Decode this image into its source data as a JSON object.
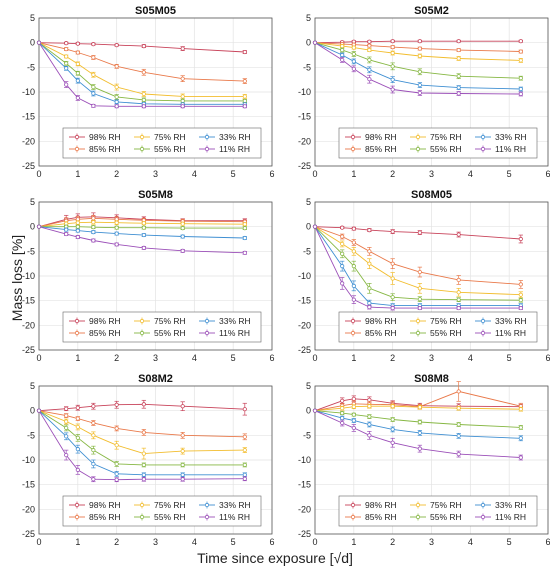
{
  "figure": {
    "ylabel": "Mass loss [%]",
    "xlabel": "Time since exposure [√d]"
  },
  "colors": {
    "98% RH": "#c8435a",
    "85% RH": "#e9794a",
    "75% RH": "#f2bd2e",
    "55% RH": "#86b743",
    "33% RH": "#3f8fd2",
    "11% RH": "#9b4fb8"
  },
  "chart_data": [
    {
      "type": "line",
      "title": "S05M05",
      "xlim": [
        0,
        6
      ],
      "ylim": [
        -25,
        5
      ],
      "grid": true,
      "legend": "bottom",
      "x": [
        0,
        0.7,
        1,
        1.4,
        2,
        2.7,
        3.7,
        5.3
      ],
      "series": [
        {
          "name": "98% RH",
          "values": [
            0,
            -0.1,
            -0.2,
            -0.3,
            -0.5,
            -0.7,
            -1.2,
            -1.9
          ],
          "errors": [
            0,
            0.2,
            0.2,
            0.2,
            0.2,
            0.3,
            0.4,
            0.3
          ]
        },
        {
          "name": "85% RH",
          "values": [
            0,
            -1.3,
            -2.0,
            -3.0,
            -4.8,
            -6.0,
            -7.3,
            -7.8
          ],
          "errors": [
            0,
            0.3,
            0.3,
            0.4,
            0.4,
            0.6,
            0.6,
            0.5
          ]
        },
        {
          "name": "75% RH",
          "values": [
            0,
            -2.8,
            -4.3,
            -6.5,
            -9.0,
            -10.4,
            -10.9,
            -10.9
          ],
          "errors": [
            0,
            0.3,
            0.4,
            0.5,
            0.6,
            0.5,
            0.5,
            0.4
          ]
        },
        {
          "name": "55% RH",
          "values": [
            0,
            -4.2,
            -6.2,
            -9.0,
            -11.0,
            -11.6,
            -11.8,
            -11.8
          ],
          "errors": [
            0,
            0.4,
            0.4,
            0.5,
            0.5,
            0.4,
            0.4,
            0.3
          ]
        },
        {
          "name": "33% RH",
          "values": [
            0,
            -5.2,
            -7.7,
            -10.3,
            -12.0,
            -12.4,
            -12.5,
            -12.5
          ],
          "errors": [
            0,
            0.4,
            0.5,
            0.5,
            0.4,
            0.3,
            0.3,
            0.3
          ]
        },
        {
          "name": "11% RH",
          "values": [
            0,
            -8.5,
            -11.2,
            -12.8,
            -12.9,
            -12.9,
            -12.9,
            -12.9
          ],
          "errors": [
            0,
            0.6,
            0.5,
            0.3,
            0.3,
            0.3,
            0.3,
            0.3
          ]
        }
      ]
    },
    {
      "type": "line",
      "title": "S05M2",
      "xlim": [
        0,
        6
      ],
      "ylim": [
        -25,
        5
      ],
      "grid": true,
      "legend": "bottom",
      "x": [
        0,
        0.7,
        1,
        1.4,
        2,
        2.7,
        3.7,
        5.3
      ],
      "series": [
        {
          "name": "98% RH",
          "values": [
            0,
            0.1,
            0.2,
            0.2,
            0.3,
            0.3,
            0.3,
            0.3
          ],
          "errors": [
            0,
            0.2,
            0.2,
            0.2,
            0.2,
            0.2,
            0.2,
            0.2
          ]
        },
        {
          "name": "85% RH",
          "values": [
            0,
            -0.3,
            -0.4,
            -0.6,
            -0.9,
            -1.2,
            -1.5,
            -1.8
          ],
          "errors": [
            0,
            0.2,
            0.2,
            0.3,
            0.3,
            0.3,
            0.3,
            0.3
          ]
        },
        {
          "name": "75% RH",
          "values": [
            0,
            -0.7,
            -1.0,
            -1.5,
            -2.1,
            -2.7,
            -3.2,
            -3.6
          ],
          "errors": [
            0,
            0.3,
            0.3,
            0.3,
            0.4,
            0.4,
            0.4,
            0.4
          ]
        },
        {
          "name": "55% RH",
          "values": [
            0,
            -1.5,
            -2.3,
            -3.5,
            -4.8,
            -5.9,
            -6.8,
            -7.2
          ],
          "errors": [
            0,
            0.4,
            0.5,
            0.6,
            0.7,
            0.6,
            0.5,
            0.4
          ]
        },
        {
          "name": "33% RH",
          "values": [
            0,
            -2.5,
            -3.8,
            -5.5,
            -7.5,
            -8.6,
            -9.1,
            -9.4
          ],
          "errors": [
            0,
            0.4,
            0.5,
            0.6,
            0.6,
            0.5,
            0.4,
            0.4
          ]
        },
        {
          "name": "11% RH",
          "values": [
            0,
            -3.5,
            -5.3,
            -7.4,
            -9.5,
            -10.2,
            -10.3,
            -10.4
          ],
          "errors": [
            0,
            0.5,
            0.6,
            0.8,
            0.7,
            0.5,
            0.4,
            0.4
          ]
        }
      ]
    },
    {
      "type": "line",
      "title": "S05M8",
      "xlim": [
        0,
        6
      ],
      "ylim": [
        -25,
        5
      ],
      "grid": true,
      "legend": "bottom",
      "x": [
        0,
        0.7,
        1,
        1.4,
        2,
        2.7,
        3.7,
        5.3
      ],
      "series": [
        {
          "name": "98% RH",
          "values": [
            0,
            1.5,
            1.9,
            2.0,
            1.8,
            1.5,
            1.2,
            1.2
          ],
          "errors": [
            0,
            0.8,
            0.7,
            0.8,
            0.6,
            0.5,
            0.4,
            0.4
          ]
        },
        {
          "name": "85% RH",
          "values": [
            0,
            1.2,
            1.5,
            1.7,
            1.5,
            1.3,
            1.1,
            1.0
          ],
          "errors": [
            0,
            0.6,
            0.6,
            0.6,
            0.5,
            0.4,
            0.4,
            0.3
          ]
        },
        {
          "name": "75% RH",
          "values": [
            0,
            0.6,
            0.8,
            0.9,
            0.8,
            0.7,
            0.6,
            0.5
          ],
          "errors": [
            0,
            0.4,
            0.4,
            0.4,
            0.4,
            0.3,
            0.3,
            0.3
          ]
        },
        {
          "name": "55% RH",
          "values": [
            0,
            0.0,
            0.0,
            -0.1,
            -0.2,
            -0.2,
            -0.3,
            -0.3
          ],
          "errors": [
            0,
            0.3,
            0.3,
            0.3,
            0.3,
            0.3,
            0.3,
            0.3
          ]
        },
        {
          "name": "33% RH",
          "values": [
            0,
            -0.6,
            -0.8,
            -1.1,
            -1.4,
            -1.7,
            -2.0,
            -2.3
          ],
          "errors": [
            0,
            0.3,
            0.3,
            0.3,
            0.3,
            0.3,
            0.3,
            0.3
          ]
        },
        {
          "name": "11% RH",
          "values": [
            0,
            -1.5,
            -2.1,
            -2.8,
            -3.6,
            -4.3,
            -4.9,
            -5.3
          ],
          "errors": [
            0,
            0.3,
            0.3,
            0.3,
            0.3,
            0.3,
            0.3,
            0.3
          ]
        }
      ]
    },
    {
      "type": "line",
      "title": "S08M05",
      "xlim": [
        0,
        6
      ],
      "ylim": [
        -25,
        5
      ],
      "grid": true,
      "legend": "bottom",
      "x": [
        0,
        0.7,
        1,
        1.4,
        2,
        2.7,
        3.7,
        5.3
      ],
      "series": [
        {
          "name": "98% RH",
          "values": [
            0,
            -0.2,
            -0.4,
            -0.7,
            -1.0,
            -1.2,
            -1.6,
            -2.5
          ],
          "errors": [
            0,
            0.2,
            0.3,
            0.3,
            0.4,
            0.4,
            0.5,
            0.8
          ]
        },
        {
          "name": "85% RH",
          "values": [
            0,
            -2.0,
            -3.2,
            -5.0,
            -7.5,
            -9.2,
            -10.8,
            -11.7
          ],
          "errors": [
            0,
            0.5,
            0.6,
            0.8,
            1.0,
            1.0,
            0.9,
            0.8
          ]
        },
        {
          "name": "75% RH",
          "values": [
            0,
            -3.5,
            -5.0,
            -7.5,
            -10.5,
            -12.5,
            -13.3,
            -13.8
          ],
          "errors": [
            0,
            0.6,
            0.8,
            1.0,
            1.2,
            1.0,
            0.8,
            0.6
          ]
        },
        {
          "name": "55% RH",
          "values": [
            0,
            -5.5,
            -8.0,
            -12.5,
            -14.3,
            -14.7,
            -14.8,
            -14.9
          ],
          "errors": [
            0,
            0.8,
            1.0,
            1.0,
            0.7,
            0.5,
            0.4,
            0.4
          ]
        },
        {
          "name": "33% RH",
          "values": [
            0,
            -8.0,
            -12.0,
            -15.5,
            -16.0,
            -16.0,
            -16.0,
            -16.0
          ],
          "errors": [
            0,
            1.0,
            1.0,
            0.6,
            0.4,
            0.4,
            0.4,
            0.4
          ]
        },
        {
          "name": "11% RH",
          "values": [
            0,
            -11.5,
            -14.8,
            -16.3,
            -16.5,
            -16.5,
            -16.5,
            -16.5
          ],
          "errors": [
            0,
            1.2,
            0.8,
            0.4,
            0.4,
            0.3,
            0.3,
            0.3
          ]
        }
      ]
    },
    {
      "type": "line",
      "title": "S08M2",
      "xlim": [
        0,
        6
      ],
      "ylim": [
        -25,
        5
      ],
      "grid": true,
      "legend": "bottom",
      "x": [
        0,
        0.7,
        1,
        1.4,
        2,
        2.7,
        3.7,
        5.3
      ],
      "series": [
        {
          "name": "98% RH",
          "values": [
            0,
            0.4,
            0.6,
            0.9,
            1.2,
            1.3,
            0.9,
            0.3
          ],
          "errors": [
            0,
            0.4,
            0.5,
            0.6,
            0.7,
            0.8,
            0.9,
            1.2
          ]
        },
        {
          "name": "85% RH",
          "values": [
            0,
            -1.0,
            -1.6,
            -2.5,
            -3.6,
            -4.4,
            -5.0,
            -5.3
          ],
          "errors": [
            0,
            0.4,
            0.4,
            0.5,
            0.5,
            0.6,
            0.6,
            0.6
          ]
        },
        {
          "name": "75% RH",
          "values": [
            0,
            -2.2,
            -3.3,
            -5.0,
            -7.0,
            -8.7,
            -8.2,
            -8.0
          ],
          "errors": [
            0,
            0.5,
            0.6,
            0.7,
            0.8,
            1.1,
            0.6,
            0.5
          ]
        },
        {
          "name": "55% RH",
          "values": [
            0,
            -3.5,
            -5.5,
            -8.0,
            -10.8,
            -11.0,
            -11.0,
            -11.0
          ],
          "errors": [
            0,
            0.6,
            0.7,
            0.8,
            0.5,
            0.4,
            0.4,
            0.4
          ]
        },
        {
          "name": "33% RH",
          "values": [
            0,
            -5.2,
            -7.8,
            -10.8,
            -12.8,
            -13.0,
            -13.0,
            -13.0
          ],
          "errors": [
            0,
            0.7,
            0.8,
            0.8,
            0.5,
            0.4,
            0.4,
            0.4
          ]
        },
        {
          "name": "11% RH",
          "values": [
            0,
            -9.0,
            -12.0,
            -13.9,
            -14.0,
            -13.9,
            -13.9,
            -13.8
          ],
          "errors": [
            0,
            1.0,
            0.9,
            0.5,
            0.4,
            0.4,
            0.4,
            0.4
          ]
        }
      ]
    },
    {
      "type": "line",
      "title": "S08M8",
      "xlim": [
        0,
        6
      ],
      "ylim": [
        -25,
        5
      ],
      "grid": true,
      "legend": "bottom",
      "x": [
        0,
        0.7,
        1,
        1.4,
        2,
        2.7,
        3.7,
        5.3
      ],
      "series": [
        {
          "name": "98% RH",
          "values": [
            0,
            2.0,
            2.4,
            2.2,
            1.5,
            1.0,
            0.9,
            0.8
          ],
          "errors": [
            0,
            0.6,
            0.6,
            0.6,
            0.5,
            0.5,
            0.5,
            0.5
          ]
        },
        {
          "name": "85% RH",
          "values": [
            0,
            1.0,
            1.4,
            1.3,
            1.2,
            0.8,
            3.9,
            0.9
          ],
          "errors": [
            0,
            0.5,
            0.6,
            0.6,
            0.6,
            0.5,
            2.0,
            0.6
          ]
        },
        {
          "name": "75% RH",
          "values": [
            0,
            0.5,
            0.8,
            0.9,
            0.9,
            0.7,
            0.5,
            0.3
          ],
          "errors": [
            0,
            0.4,
            0.4,
            0.4,
            0.4,
            0.4,
            0.4,
            0.4
          ]
        },
        {
          "name": "55% RH",
          "values": [
            0,
            -0.5,
            -0.8,
            -1.2,
            -1.8,
            -2.3,
            -2.8,
            -3.4
          ],
          "errors": [
            0,
            0.3,
            0.3,
            0.4,
            0.4,
            0.4,
            0.4,
            0.4
          ]
        },
        {
          "name": "33% RH",
          "values": [
            0,
            -1.5,
            -2.0,
            -2.8,
            -3.8,
            -4.5,
            -5.1,
            -5.6
          ],
          "errors": [
            0,
            0.4,
            0.4,
            0.5,
            0.5,
            0.5,
            0.5,
            0.5
          ]
        },
        {
          "name": "11% RH",
          "values": [
            0,
            -2.5,
            -3.5,
            -5.0,
            -6.5,
            -7.7,
            -8.8,
            -9.5
          ],
          "errors": [
            0,
            0.6,
            0.7,
            0.8,
            0.9,
            0.7,
            0.6,
            0.5
          ]
        }
      ]
    }
  ]
}
